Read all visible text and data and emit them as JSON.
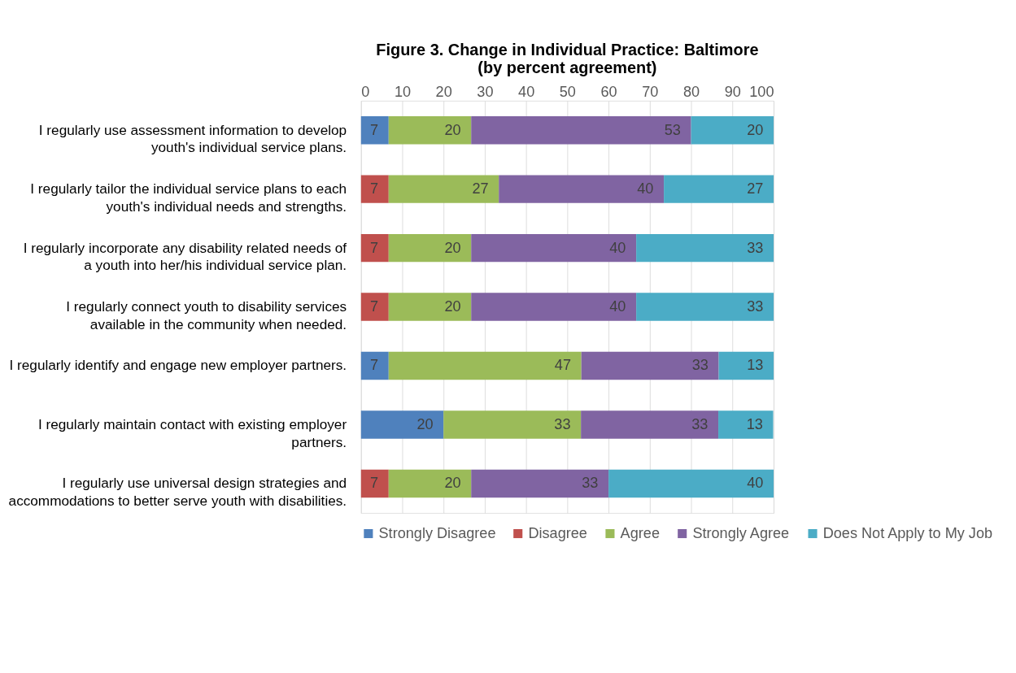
{
  "chart_data": {
    "type": "bar",
    "orientation": "horizontal",
    "stacked": true,
    "title": "Figure 3. Change in Individual Practice: Baltimore",
    "subtitle": "(by percent agreement)",
    "categories": [
      "I regularly use assessment information to develop youth's individual service plans.",
      "I regularly tailor the individual service plans to each youth's individual needs and strengths.",
      "I regularly incorporate any disability related needs of a youth into her/his individual service plan.",
      "I regularly connect youth to disability services available in the community when needed.",
      "I regularly identify and engage new employer partners.",
      "I regularly maintain contact with existing employer partners.",
      "I regularly use universal design strategies and accommodations to better serve youth with disabilities."
    ],
    "series": [
      {
        "name": "Strongly Disagree",
        "color": "#4f81bd",
        "values": [
          6.7,
          null,
          null,
          null,
          6.7,
          20,
          null
        ],
        "value_labels": [
          "7",
          null,
          null,
          null,
          "7",
          "20",
          null
        ]
      },
      {
        "name": "Disagree",
        "color": "#c0504d",
        "values": [
          null,
          6.7,
          6.7,
          6.7,
          null,
          null,
          6.7
        ],
        "value_labels": [
          null,
          "7",
          "7",
          "7",
          null,
          null,
          "7"
        ]
      },
      {
        "name": "Agree",
        "color": "#9bbb59",
        "values": [
          20,
          26.7,
          20,
          20,
          46.7,
          33.3,
          20
        ],
        "value_labels": [
          "20",
          "27",
          "20",
          "20",
          "47",
          "33",
          "20"
        ]
      },
      {
        "name": "Strongly Agree",
        "color": "#8064a2",
        "values": [
          53.3,
          40,
          40,
          40,
          33.3,
          33.3,
          33.3
        ],
        "value_labels": [
          "53",
          "40",
          "40",
          "40",
          "33",
          "33",
          "33"
        ]
      },
      {
        "name": "Does Not Apply to My Job",
        "color": "#4bacc6",
        "values": [
          20,
          26.6,
          33.3,
          33.3,
          13.3,
          13.3,
          40
        ],
        "value_labels": [
          "20",
          "27",
          "33",
          "33",
          "13",
          "13",
          "40"
        ]
      }
    ],
    "xlim": [
      0,
      100
    ],
    "xticks": [
      0,
      10,
      20,
      30,
      40,
      50,
      60,
      70,
      80,
      90,
      100
    ],
    "grid": "x",
    "legend": "bottom"
  }
}
